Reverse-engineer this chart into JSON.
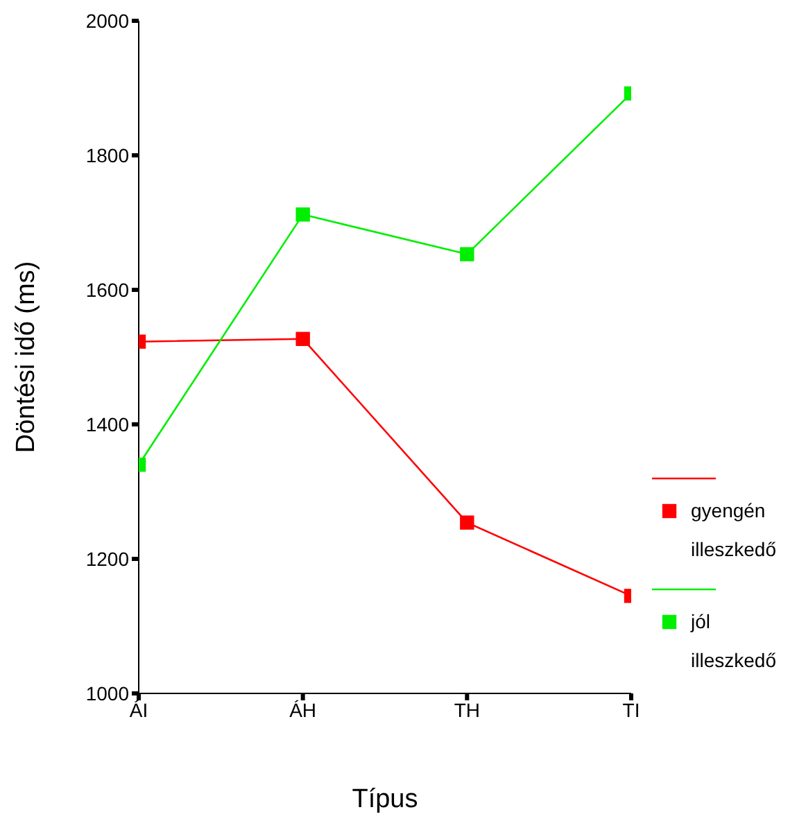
{
  "chart_data": {
    "type": "line",
    "xlabel": "Típus",
    "ylabel": "Döntési idő (ms)",
    "categories": [
      "ÁI",
      "ÁH",
      "TH",
      "TI"
    ],
    "series": [
      {
        "name": "gyengén illeszkedő",
        "color": "#ff0000",
        "values": [
          1523,
          1527,
          1254,
          1145
        ]
      },
      {
        "name": "jól illeszkedő",
        "color": "#00ee00",
        "values": [
          1340,
          1712,
          1653,
          1892
        ]
      }
    ],
    "ylim": [
      1000,
      2000
    ],
    "yticks": [
      1000,
      1200,
      1400,
      1600,
      1800,
      2000
    ],
    "grid": false,
    "legend": "right",
    "marker": "square",
    "line_style": "solid"
  }
}
